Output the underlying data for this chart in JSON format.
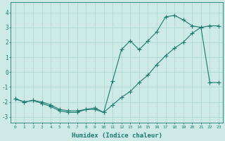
{
  "xlabel": "Humidex (Indice chaleur)",
  "ylabel": "",
  "line_color": "#1a7a6e",
  "bg_color": "#ceeae6",
  "grid_color": "#b0d8d4",
  "xlim": [
    -0.5,
    23.5
  ],
  "ylim": [
    -3.4,
    4.7
  ],
  "yticks": [
    -3,
    -2,
    -1,
    0,
    1,
    2,
    3,
    4
  ],
  "xticks": [
    0,
    1,
    2,
    3,
    4,
    5,
    6,
    7,
    8,
    9,
    10,
    11,
    12,
    13,
    14,
    15,
    16,
    17,
    18,
    19,
    20,
    21,
    22,
    23
  ],
  "line1_x": [
    0,
    1,
    2,
    3,
    4,
    5,
    6,
    7,
    8,
    9,
    10,
    11,
    12,
    13,
    14,
    15,
    16,
    17,
    18,
    19,
    20,
    21,
    22,
    23
  ],
  "line1_y": [
    -1.8,
    -2.0,
    -1.9,
    -2.1,
    -2.3,
    -2.6,
    -2.7,
    -2.7,
    -2.5,
    -2.5,
    -2.7,
    -2.2,
    -1.7,
    -1.3,
    -0.7,
    -0.2,
    0.5,
    1.1,
    1.6,
    2.0,
    2.6,
    3.0,
    3.1,
    3.1
  ],
  "line2_x": [
    0,
    1,
    2,
    3,
    4,
    5,
    6,
    7,
    8,
    9,
    10,
    11,
    12,
    13,
    14,
    15,
    16,
    17,
    18,
    19,
    20,
    21,
    22,
    23
  ],
  "line2_y": [
    -1.8,
    -2.0,
    -1.9,
    -2.0,
    -2.2,
    -2.5,
    -2.6,
    -2.6,
    -2.5,
    -2.4,
    -2.7,
    -0.6,
    1.5,
    2.1,
    1.5,
    2.1,
    2.7,
    3.7,
    3.8,
    3.5,
    3.1,
    3.0,
    -0.7,
    -0.7
  ],
  "marker": "+",
  "markersize": 4,
  "linewidth": 0.8
}
